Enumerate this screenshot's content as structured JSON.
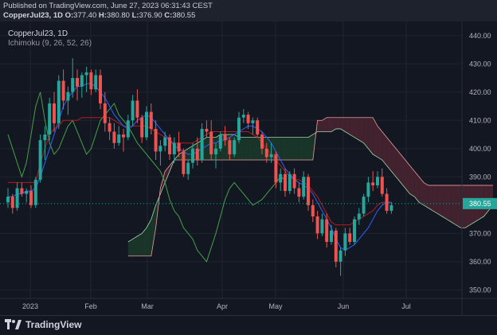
{
  "header": {
    "published": "Published on TradingView.com, June 27, 2023 06:31:43 CEST",
    "symbol": "CopperJul23, 1D",
    "open_label": "O:",
    "open": "377.40",
    "high_label": "H:",
    "high": "380.80",
    "low_label": "L:",
    "low": "376.90",
    "close_label": "C:",
    "close": "380.55"
  },
  "legend": {
    "symbol": "CopperJul23, 1D",
    "indicator": "Ichimoku (9, 26, 52, 26)"
  },
  "footer": {
    "brand": "TradingView"
  },
  "chart_data": {
    "type": "candlestick",
    "y_ticks": [
      "440.00",
      "430.00",
      "420.00",
      "410.00",
      "400.00",
      "390.00",
      "370.00",
      "360.00",
      "350.00"
    ],
    "x_ticks": [
      "2023",
      "Feb",
      "Mar",
      "Apr",
      "May",
      "Jun",
      "Jul"
    ],
    "ylim": [
      347,
      445
    ],
    "last_price": "380.55",
    "colors": {
      "up": "#26a69a",
      "down": "#ef5350",
      "conversion": "#2962ff",
      "base": "#b71c1c",
      "lagging": "#43a047",
      "leadA": "#a5d6a7",
      "leadB": "#ef9a9a",
      "cloud_up": "#1b3b2a",
      "cloud_down": "#4a2430",
      "price_label": "#26a69a"
    },
    "candles": [
      [
        381,
        386,
        379,
        383
      ],
      [
        383,
        384,
        377,
        379
      ],
      [
        379,
        388,
        378,
        386
      ],
      [
        386,
        388,
        383,
        384
      ],
      [
        384,
        386,
        381,
        385
      ],
      [
        385,
        387,
        379,
        380
      ],
      [
        380,
        390,
        379,
        389
      ],
      [
        389,
        405,
        388,
        403
      ],
      [
        403,
        408,
        396,
        405
      ],
      [
        405,
        418,
        403,
        416
      ],
      [
        416,
        420,
        406,
        409
      ],
      [
        409,
        426,
        407,
        424
      ],
      [
        424,
        428,
        414,
        417
      ],
      [
        417,
        422,
        412,
        420
      ],
      [
        420,
        432,
        418,
        425
      ],
      [
        425,
        428,
        417,
        422
      ],
      [
        422,
        427,
        418,
        426
      ],
      [
        426,
        429,
        420,
        427
      ],
      [
        427,
        428,
        419,
        421
      ],
      [
        421,
        428,
        420,
        426
      ],
      [
        426,
        428,
        414,
        416
      ],
      [
        416,
        420,
        406,
        409
      ],
      [
        409,
        411,
        403,
        406
      ],
      [
        406,
        409,
        400,
        402
      ],
      [
        402,
        408,
        401,
        405
      ],
      [
        405,
        407,
        399,
        404
      ],
      [
        404,
        412,
        403,
        410
      ],
      [
        410,
        419,
        408,
        417
      ],
      [
        417,
        421,
        409,
        411
      ],
      [
        411,
        412,
        402,
        404
      ],
      [
        404,
        415,
        403,
        413
      ],
      [
        413,
        416,
        405,
        407
      ],
      [
        407,
        410,
        396,
        399
      ],
      [
        399,
        403,
        394,
        401
      ],
      [
        401,
        406,
        399,
        404
      ],
      [
        404,
        405,
        396,
        398
      ],
      [
        398,
        404,
        395,
        402
      ],
      [
        402,
        406,
        397,
        399
      ],
      [
        399,
        400,
        390,
        391
      ],
      [
        391,
        396,
        389,
        395
      ],
      [
        395,
        402,
        393,
        400
      ],
      [
        400,
        404,
        394,
        396
      ],
      [
        396,
        409,
        395,
        407
      ],
      [
        407,
        410,
        404,
        406
      ],
      [
        406,
        410,
        396,
        398
      ],
      [
        398,
        402,
        393,
        400
      ],
      [
        400,
        406,
        399,
        405
      ],
      [
        405,
        408,
        401,
        403
      ],
      [
        403,
        404,
        396,
        398
      ],
      [
        398,
        404,
        397,
        403
      ],
      [
        403,
        413,
        402,
        411
      ],
      [
        411,
        414,
        409,
        412
      ],
      [
        412,
        413,
        407,
        409
      ],
      [
        409,
        411,
        405,
        410
      ],
      [
        410,
        411,
        404,
        405
      ],
      [
        405,
        406,
        398,
        400
      ],
      [
        400,
        402,
        395,
        397
      ],
      [
        397,
        402,
        395,
        398
      ],
      [
        398,
        399,
        386,
        388
      ],
      [
        388,
        393,
        385,
        391
      ],
      [
        391,
        393,
        383,
        385
      ],
      [
        385,
        392,
        384,
        391
      ],
      [
        391,
        393,
        384,
        386
      ],
      [
        386,
        388,
        381,
        383
      ],
      [
        383,
        392,
        382,
        390
      ],
      [
        390,
        391,
        378,
        380
      ],
      [
        380,
        382,
        374,
        376
      ],
      [
        376,
        378,
        368,
        370
      ],
      [
        370,
        377,
        369,
        375
      ],
      [
        375,
        377,
        365,
        367
      ],
      [
        367,
        373,
        366,
        371
      ],
      [
        371,
        372,
        358,
        360
      ],
      [
        360,
        365,
        355,
        364
      ],
      [
        364,
        372,
        362,
        370
      ],
      [
        370,
        372,
        366,
        367
      ],
      [
        367,
        376,
        366,
        375
      ],
      [
        375,
        379,
        373,
        377
      ],
      [
        377,
        384,
        376,
        383
      ],
      [
        383,
        390,
        381,
        388
      ],
      [
        388,
        392,
        385,
        387
      ],
      [
        387,
        392,
        386,
        390
      ],
      [
        390,
        393,
        383,
        384
      ],
      [
        384,
        386,
        377,
        378
      ],
      [
        378,
        381,
        377,
        380
      ]
    ],
    "conversion": [
      383,
      383,
      384,
      384,
      385,
      385,
      386,
      390,
      395,
      400,
      405,
      410,
      415,
      418,
      420,
      422,
      422,
      423,
      423,
      422,
      420,
      418,
      415,
      412,
      410,
      408,
      407,
      408,
      410,
      411,
      412,
      411,
      409,
      407,
      405,
      403,
      401,
      400,
      399,
      398,
      398,
      399,
      400,
      401,
      402,
      402,
      403,
      403,
      404,
      405,
      406,
      407,
      408,
      408,
      407,
      406,
      404,
      402,
      399,
      396,
      393,
      391,
      389,
      388,
      387,
      386,
      384,
      381,
      378,
      375,
      372,
      368,
      365,
      364,
      365,
      366,
      368,
      370,
      372,
      375,
      378,
      380,
      381,
      381
    ],
    "base": [
      388,
      388,
      388,
      388,
      388,
      388,
      388,
      395,
      400,
      405,
      407,
      408,
      410,
      410,
      410,
      410,
      411,
      411,
      411,
      411,
      411,
      411,
      411,
      410,
      409,
      408,
      408,
      408,
      408,
      408,
      408,
      407,
      406,
      405,
      404,
      403,
      402,
      402,
      402,
      402,
      402,
      403,
      404,
      405,
      406,
      406,
      406,
      406,
      406,
      406,
      406,
      406,
      406,
      405,
      404,
      402,
      400,
      398,
      396,
      394,
      392,
      390,
      389,
      389,
      388,
      387,
      385,
      383,
      380,
      377,
      374,
      373,
      373,
      373,
      373,
      374,
      375,
      376,
      377,
      378,
      380,
      381,
      381,
      381
    ],
    "lagging": [
      405,
      400,
      395,
      390,
      395,
      405,
      415,
      420,
      410,
      402,
      398,
      400,
      404,
      408,
      410,
      406,
      402,
      398,
      400,
      405,
      410,
      412,
      414,
      416,
      412,
      410,
      408,
      405,
      402,
      400,
      398,
      396,
      394,
      392,
      388,
      382,
      378,
      376,
      372,
      370,
      368,
      364,
      362,
      360,
      365,
      370,
      376,
      382,
      386,
      388,
      386,
      384,
      382,
      380,
      381,
      382,
      384,
      386,
      388,
      390,
      389
    ],
    "leadA": [
      null,
      null,
      null,
      null,
      null,
      null,
      null,
      null,
      null,
      null,
      null,
      null,
      null,
      null,
      null,
      null,
      null,
      null,
      null,
      null,
      null,
      null,
      null,
      null,
      null,
      null,
      367,
      368,
      369,
      370,
      372,
      375,
      380,
      384,
      388,
      392,
      396,
      398,
      399,
      400,
      401,
      402,
      403,
      404,
      404,
      404,
      405,
      405,
      405,
      405,
      404,
      404,
      404,
      404,
      404,
      404,
      404,
      404,
      404,
      404,
      404,
      404,
      404,
      404,
      404,
      404,
      405,
      406,
      406,
      406,
      406,
      407,
      407,
      406,
      405,
      404,
      403,
      402,
      400,
      398,
      397,
      396,
      394,
      392,
      390,
      388,
      386,
      384,
      383,
      381,
      380,
      379,
      378,
      377,
      376,
      375,
      374,
      373,
      372,
      372,
      373,
      374,
      375,
      376,
      378,
      380
    ],
    "leadB": [
      null,
      null,
      null,
      null,
      null,
      null,
      null,
      null,
      null,
      null,
      null,
      null,
      null,
      null,
      null,
      null,
      null,
      null,
      null,
      null,
      null,
      null,
      null,
      null,
      null,
      null,
      362,
      362,
      362,
      362,
      362,
      362,
      372,
      386,
      392,
      394,
      396,
      396,
      396,
      396,
      396,
      396,
      396,
      396,
      396,
      396,
      396,
      396,
      396,
      396,
      396,
      396,
      396,
      396,
      396,
      396,
      396,
      396,
      396,
      396,
      396,
      396,
      396,
      396,
      396,
      396,
      396,
      410,
      410,
      411,
      411,
      411,
      411,
      411,
      411,
      411,
      411,
      411,
      411,
      411,
      408,
      406,
      404,
      402,
      400,
      398,
      396,
      394,
      392,
      390,
      388,
      387,
      387,
      387,
      387,
      387,
      387,
      387,
      387,
      387,
      387,
      387,
      387,
      387,
      387,
      387
    ]
  }
}
